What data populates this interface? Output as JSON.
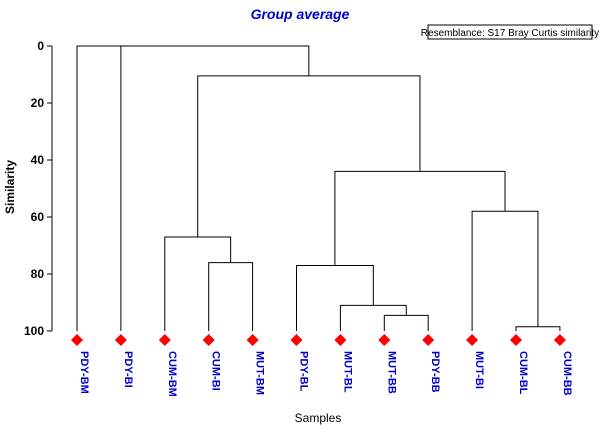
{
  "chart_data": {
    "type": "dendrogram",
    "title": "Group average",
    "legend_box": "Resemblance: S17 Bray Curtis similarity",
    "ylabel": "Similarity",
    "xlabel": "Samples",
    "ylim": [
      0,
      100
    ],
    "yticks": [
      0,
      20,
      40,
      60,
      80,
      100
    ],
    "y_inverted": true,
    "leaves": [
      "PDY-BM",
      "PDY-BI",
      "CUM-BM",
      "CUM-BI",
      "MUT-BM",
      "PDY-BL",
      "MUT-BL",
      "MUT-BB",
      "PDY-BB",
      "MUT-BI",
      "CUM-BL",
      "CUM-BB"
    ],
    "merges": [
      {
        "left": "CUM-BL",
        "right": "CUM-BB",
        "similarity": 98.5
      },
      {
        "left": "MUT-BB",
        "right": "PDY-BB",
        "similarity": 94.5
      },
      {
        "left": "MUT-BL",
        "right": 1,
        "similarity": 91
      },
      {
        "left": "PDY-BL",
        "right": 2,
        "similarity": 77
      },
      {
        "left": "CUM-BI",
        "right": "MUT-BM",
        "similarity": 76
      },
      {
        "left": "CUM-BM",
        "right": 4,
        "similarity": 67
      },
      {
        "left": "MUT-BI",
        "right": 0,
        "similarity": 58
      },
      {
        "left": 3,
        "right": 6,
        "similarity": 44
      },
      {
        "left": 5,
        "right": 7,
        "similarity": 10.5
      },
      {
        "left": "PDY-BI",
        "right": 8,
        "similarity": 0
      },
      {
        "left": "PDY-BM",
        "right": 9,
        "similarity": 0
      }
    ],
    "marker_color": "#ff0000",
    "label_color": "#0000cc",
    "title_color": "#0000cc"
  }
}
